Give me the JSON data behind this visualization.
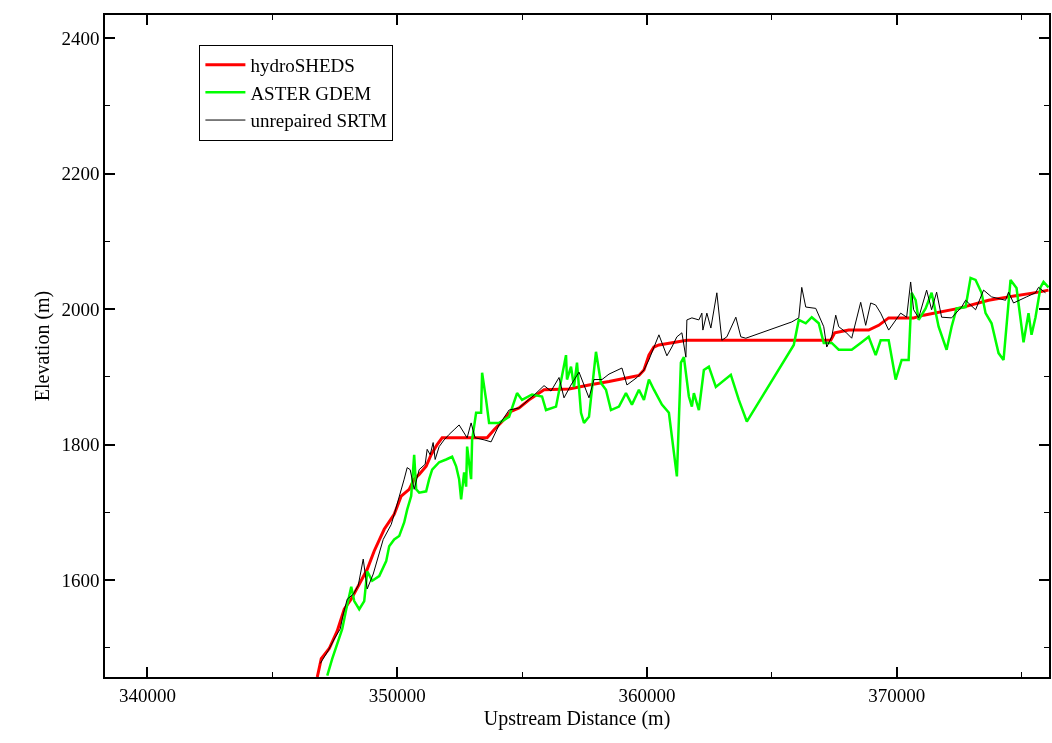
{
  "chart_data": {
    "type": "line",
    "xlabel": "Upstream Distance (m)",
    "ylabel": "Elevation (m)",
    "xlim": [
      338300,
      376100
    ],
    "xticks": [
      340000,
      350000,
      360000,
      370000
    ],
    "ylim": [
      1457,
      2434
    ],
    "yticks": [
      1600,
      1800,
      2000,
      2200,
      2400
    ],
    "grid": false,
    "legend": "top left",
    "line_style": "solid",
    "marker": "none",
    "series": [
      {
        "name": "hydroSHEDS",
        "color": "#ff0000",
        "x": [
          346800,
          346960,
          347280,
          347600,
          347880,
          348160,
          348480,
          348800,
          349080,
          349480,
          349880,
          350160,
          350480,
          350680,
          350880,
          351160,
          351360,
          351600,
          351800,
          353600,
          353880,
          354280,
          354560,
          354880,
          355280,
          355880,
          356880,
          357680,
          358480,
          359280,
          359680,
          359880,
          360080,
          360280,
          360480,
          361600,
          363280,
          365680,
          367360,
          367520,
          368080,
          368880,
          369280,
          369680,
          370680,
          371080,
          372480,
          373680,
          374480,
          375680,
          376080
        ],
        "values": [
          1457,
          1484,
          1499,
          1525,
          1557,
          1572,
          1594,
          1616,
          1643,
          1675,
          1697,
          1724,
          1734,
          1749,
          1756,
          1768,
          1785,
          1800,
          1810,
          1810,
          1822,
          1837,
          1849,
          1854,
          1866,
          1881,
          1882,
          1888,
          1893,
          1899,
          1902,
          1910,
          1932,
          1944,
          1947,
          1954,
          1954,
          1954,
          1954,
          1965,
          1969,
          1969,
          1976,
          1987,
          1987,
          1991,
          2001,
          2013,
          2018,
          2025,
          2028
        ]
      },
      {
        "name": "ASTER GDEM",
        "color": "#00ff00",
        "x": [
          347200,
          347400,
          347800,
          347960,
          348160,
          348280,
          348480,
          348680,
          348800,
          349000,
          349280,
          349560,
          349680,
          349880,
          350080,
          350280,
          350400,
          350560,
          350680,
          350760,
          350880,
          351160,
          351280,
          351400,
          351680,
          351960,
          352200,
          352360,
          352480,
          352560,
          352680,
          352760,
          352800,
          352960,
          353000,
          353160,
          353360,
          353400,
          353560,
          353680,
          354080,
          354480,
          354800,
          355000,
          355400,
          355800,
          355960,
          356360,
          356760,
          356800,
          356960,
          357080,
          357200,
          357360,
          357480,
          357680,
          357960,
          358160,
          358360,
          358560,
          358880,
          359160,
          359400,
          359680,
          359880,
          360080,
          360280,
          360600,
          360880,
          361200,
          361360,
          361480,
          361680,
          361800,
          361880,
          362080,
          362280,
          362480,
          362760,
          363360,
          363680,
          364000,
          365880,
          366080,
          366360,
          366600,
          366880,
          367080,
          367400,
          367680,
          368200,
          368560,
          368880,
          369160,
          369360,
          369680,
          369960,
          370200,
          370480,
          370600,
          370760,
          370880,
          371160,
          371400,
          371680,
          372000,
          372200,
          372400,
          372760,
          372960,
          373160,
          373400,
          373560,
          373800,
          374080,
          374280,
          374560,
          374800,
          375000,
          375080,
          375280,
          375400,
          375560,
          375760,
          375880,
          376080
        ],
        "values": [
          1459,
          1484,
          1528,
          1557,
          1590,
          1569,
          1557,
          1569,
          1613,
          1599,
          1606,
          1628,
          1650,
          1660,
          1665,
          1685,
          1704,
          1724,
          1785,
          1734,
          1729,
          1731,
          1749,
          1763,
          1774,
          1778,
          1782,
          1768,
          1749,
          1719,
          1759,
          1738,
          1797,
          1749,
          1807,
          1847,
          1847,
          1906,
          1866,
          1832,
          1832,
          1841,
          1876,
          1866,
          1874,
          1871,
          1851,
          1856,
          1932,
          1896,
          1915,
          1885,
          1921,
          1847,
          1832,
          1841,
          1937,
          1891,
          1881,
          1851,
          1856,
          1876,
          1859,
          1881,
          1866,
          1896,
          1881,
          1859,
          1847,
          1753,
          1921,
          1929,
          1871,
          1856,
          1876,
          1851,
          1910,
          1915,
          1885,
          1903,
          1866,
          1834,
          1947,
          1984,
          1979,
          1988,
          1979,
          1950,
          1950,
          1940,
          1940,
          1950,
          1959,
          1932,
          1954,
          1954,
          1896,
          1925,
          1925,
          2024,
          2013,
          1984,
          2001,
          2024,
          1974,
          1940,
          1974,
          2001,
          2003,
          2046,
          2043,
          2024,
          1994,
          1979,
          1935,
          1925,
          2043,
          2031,
          1974,
          1951,
          1994,
          1962,
          1988,
          2032,
          2040,
          2032
        ]
      },
      {
        "name": "unrepaired SRTM",
        "color": "#000000",
        "x": [
          346920,
          347240,
          347480,
          347720,
          347840,
          348000,
          348240,
          348440,
          348640,
          348800,
          349040,
          349440,
          349760,
          349880,
          350280,
          350400,
          350520,
          350680,
          350880,
          351120,
          351200,
          351320,
          351440,
          351520,
          351680,
          351880,
          352080,
          352280,
          352480,
          352800,
          352960,
          353120,
          353480,
          353760,
          354080,
          354480,
          354880,
          355480,
          355880,
          356160,
          356480,
          356680,
          356960,
          357280,
          357680,
          357880,
          358200,
          358480,
          359000,
          359200,
          359600,
          359880,
          360080,
          360480,
          360800,
          361000,
          361200,
          361400,
          361560,
          361600,
          361800,
          362080,
          362200,
          362240,
          362400,
          362560,
          362800,
          363000,
          363200,
          363560,
          363760,
          363960,
          365800,
          366080,
          366200,
          366360,
          366760,
          367080,
          367200,
          367400,
          367560,
          367680,
          367960,
          368200,
          368560,
          368760,
          368960,
          369160,
          369360,
          369680,
          370160,
          370400,
          370560,
          370680,
          370880,
          371200,
          371400,
          371600,
          371800,
          372200,
          372600,
          372760,
          373160,
          373480,
          373800,
          374360,
          374480,
          374680,
          375200,
          375560,
          375680,
          375960
        ],
        "values": [
          1477,
          1496,
          1513,
          1528,
          1550,
          1572,
          1579,
          1592,
          1631,
          1587,
          1609,
          1660,
          1682,
          1697,
          1749,
          1766,
          1763,
          1734,
          1763,
          1771,
          1793,
          1785,
          1803,
          1778,
          1797,
          1807,
          1815,
          1822,
          1829,
          1810,
          1832,
          1810,
          1807,
          1804,
          1829,
          1851,
          1854,
          1873,
          1887,
          1879,
          1899,
          1869,
          1888,
          1907,
          1869,
          1896,
          1896,
          1904,
          1913,
          1888,
          1899,
          1910,
          1925,
          1962,
          1931,
          1944,
          1959,
          1965,
          1929,
          1984,
          1987,
          1984,
          1994,
          1969,
          1994,
          1972,
          2024,
          1954,
          1959,
          1988,
          1959,
          1957,
          1981,
          1987,
          2032,
          2003,
          2001,
          1974,
          1944,
          1959,
          1991,
          1974,
          1966,
          1957,
          2010,
          1976,
          2009,
          2006,
          1994,
          1969,
          1994,
          1988,
          2040,
          1999,
          1987,
          2028,
          1999,
          2025,
          1988,
          1987,
          2003,
          2013,
          1999,
          2028,
          2018,
          2013,
          2025,
          2009,
          2018,
          2024,
          2032,
          2024
        ]
      }
    ]
  }
}
